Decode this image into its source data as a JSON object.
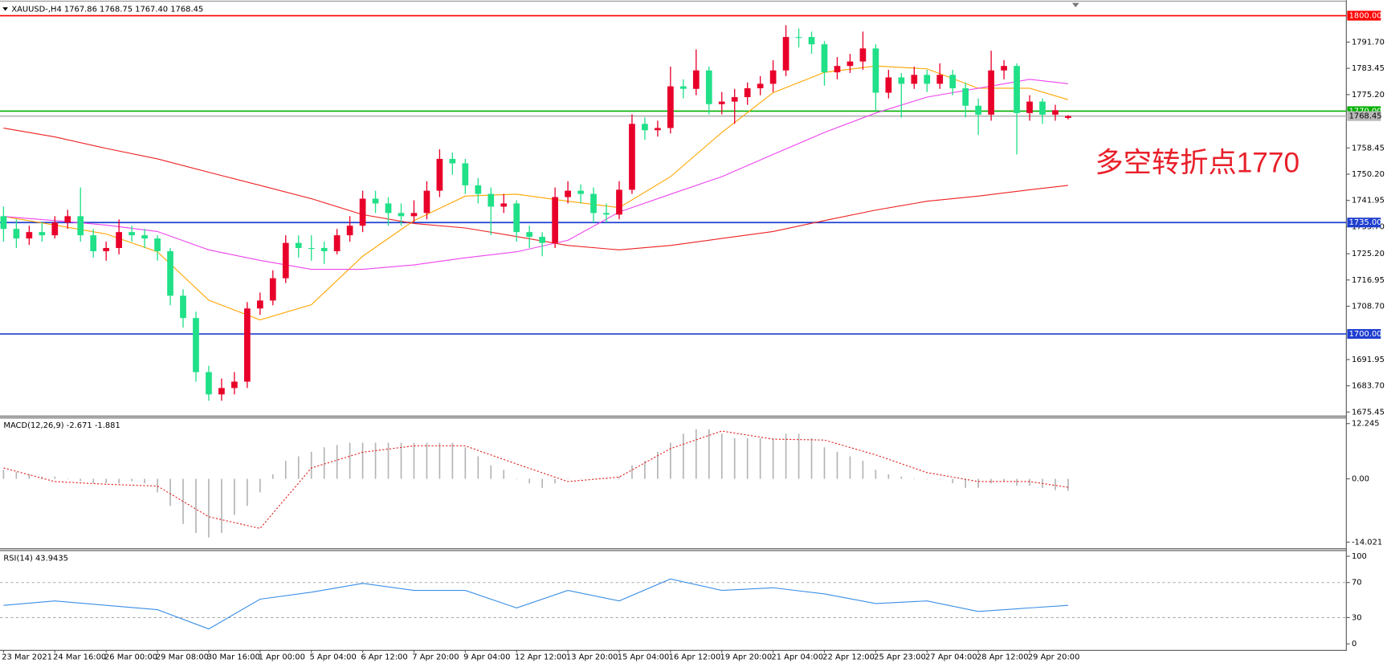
{
  "chart_data": [
    {
      "type": "candlestick",
      "title": "XAUUSD-,H4  1767.86 1768.75 1767.40 1768.45",
      "annotation": "多空转折点1770",
      "up_color": "#e8002a",
      "down_color": "#20e088",
      "ylim": [
        1674.3,
        1804.3
      ],
      "yticks": [
        {
          "value": 1791.7,
          "label": "1791.70"
        },
        1783.45,
        {
          "value": 1775.2,
          "label": "1775.20"
        },
        1758.45,
        {
          "value": 1750.2,
          "label": "1750.20"
        },
        1741.95,
        {
          "value": 1733.7,
          "label": "1733.70"
        },
        {
          "value": 1725.2,
          "label": "1725.20"
        },
        1716.95,
        {
          "value": 1708.7,
          "label": "1708.70"
        },
        1691.95,
        {
          "value": 1683.7,
          "label": "1683.70"
        },
        1675.45
      ],
      "categories": [
        "23 Mar 2021",
        null,
        null,
        null,
        "24 Mar 16:00",
        null,
        null,
        null,
        "26 Mar 00:00",
        null,
        null,
        null,
        "29 Mar 08:00",
        null,
        null,
        null,
        "30 Mar 16:00",
        null,
        null,
        null,
        "1 Apr 00:00",
        null,
        null,
        null,
        "5 Apr 04:00",
        null,
        null,
        null,
        "6 Apr 12:00",
        null,
        null,
        null,
        "7 Apr 20:00",
        null,
        null,
        null,
        "9 Apr 04:00",
        null,
        null,
        null,
        "12 Apr 12:00",
        null,
        null,
        null,
        "13 Apr 20:00",
        null,
        null,
        null,
        "15 Apr 04:00",
        null,
        null,
        null,
        "16 Apr 12:00",
        null,
        null,
        null,
        "19 Apr 20:00",
        null,
        null,
        null,
        "21 Apr 04:00",
        null,
        null,
        null,
        "22 Apr 12:00",
        null,
        null,
        null,
        "25 Apr 23:00",
        null,
        null,
        null,
        "27 Apr 04:00",
        null,
        null,
        null,
        "28 Apr 12:00",
        null,
        null,
        null,
        "29 Apr 20:00",
        null,
        null,
        null
      ],
      "candles": [
        [
          1737,
          1740,
          1729,
          1733
        ],
        [
          1733,
          1736,
          1727,
          1730
        ],
        [
          1730,
          1734,
          1728,
          1732
        ],
        [
          1732,
          1735,
          1729,
          1731
        ],
        [
          1731,
          1737,
          1730,
          1735
        ],
        [
          1735,
          1739,
          1733,
          1737
        ],
        [
          1737,
          1746,
          1729,
          1731
        ],
        [
          1731,
          1733,
          1724,
          1726
        ],
        [
          1726,
          1729,
          1723,
          1727
        ],
        [
          1727,
          1736,
          1725,
          1732
        ],
        [
          1732,
          1734,
          1729,
          1731
        ],
        [
          1731,
          1733,
          1727,
          1730
        ],
        [
          1730,
          1731,
          1723,
          1726
        ],
        [
          1726,
          1727,
          1709,
          1712
        ],
        [
          1712,
          1714,
          1702,
          1705
        ],
        [
          1705,
          1707,
          1685,
          1688
        ],
        [
          1688,
          1690,
          1679,
          1681
        ],
        [
          1681,
          1686,
          1679,
          1683
        ],
        [
          1683,
          1688,
          1681,
          1685
        ],
        [
          1685,
          1710,
          1683,
          1708
        ],
        [
          1708,
          1713,
          1706,
          1710.5
        ],
        [
          1710.5,
          1720,
          1709,
          1717.5
        ],
        [
          1717.5,
          1731,
          1716,
          1728.6
        ],
        [
          1728.6,
          1731,
          1724,
          1727
        ],
        [
          1727,
          1731,
          1723,
          1727
        ],
        [
          1727,
          1729,
          1722,
          1726
        ],
        [
          1726,
          1733,
          1725,
          1731
        ],
        [
          1731,
          1737,
          1729,
          1734
        ],
        [
          1734,
          1745,
          1732,
          1742.5
        ],
        [
          1742.5,
          1745,
          1738,
          1741
        ],
        [
          1741,
          1743,
          1734,
          1738
        ],
        [
          1738,
          1741,
          1734,
          1737
        ],
        [
          1737,
          1742,
          1735,
          1738
        ],
        [
          1738,
          1748,
          1736,
          1745
        ],
        [
          1745,
          1758,
          1743,
          1755
        ],
        [
          1755,
          1757,
          1750,
          1753.6
        ],
        [
          1753.6,
          1755,
          1744,
          1746.7
        ],
        [
          1746.7,
          1749,
          1741,
          1744
        ],
        [
          1744,
          1746,
          1731,
          1740
        ],
        [
          1740,
          1744,
          1738,
          1741
        ],
        [
          1741,
          1742,
          1729,
          1732
        ],
        [
          1732,
          1734,
          1727,
          1730.5
        ],
        [
          1730.5,
          1732,
          1724.4,
          1728.6
        ],
        [
          1728.6,
          1746,
          1727,
          1743
        ],
        [
          1743,
          1748,
          1741,
          1745
        ],
        [
          1745,
          1747,
          1741,
          1744
        ],
        [
          1744,
          1746,
          1735,
          1738
        ],
        [
          1738,
          1741,
          1735,
          1737.5
        ],
        [
          1737.5,
          1748,
          1736,
          1745.3
        ],
        [
          1745.3,
          1769,
          1744,
          1766
        ],
        [
          1766,
          1768,
          1761,
          1764
        ],
        [
          1764,
          1767,
          1762,
          1764.7
        ],
        [
          1764.7,
          1784,
          1763,
          1777.8
        ],
        [
          1777.8,
          1780,
          1774,
          1777
        ],
        [
          1777,
          1789.4,
          1775,
          1782.8
        ],
        [
          1782.8,
          1784,
          1769,
          1772.2
        ],
        [
          1772.2,
          1776,
          1769,
          1773
        ],
        [
          1773,
          1777,
          1766,
          1774.4
        ],
        [
          1774.4,
          1779,
          1772,
          1777.2
        ],
        [
          1777.2,
          1781,
          1775,
          1778.6
        ],
        [
          1778.6,
          1786,
          1776,
          1782.8
        ],
        [
          1782.8,
          1797,
          1781,
          1793.3
        ],
        [
          1793.3,
          1796,
          1790,
          1793.3
        ],
        [
          1793.3,
          1795,
          1788,
          1791
        ],
        [
          1791,
          1792,
          1778,
          1782.2
        ],
        [
          1782.2,
          1787,
          1780,
          1784.2
        ],
        [
          1784.2,
          1788,
          1782,
          1785.6
        ],
        [
          1785.6,
          1795,
          1783,
          1789.7
        ],
        [
          1789.7,
          1791,
          1770,
          1775.8
        ],
        [
          1775.8,
          1783,
          1774,
          1780.6
        ],
        [
          1780.6,
          1782,
          1768,
          1778.6
        ],
        [
          1778.6,
          1784,
          1777,
          1781.4
        ],
        [
          1781.4,
          1783,
          1776,
          1778.6
        ],
        [
          1778.6,
          1785,
          1777,
          1781.4
        ],
        [
          1781.4,
          1783,
          1775,
          1777.2
        ],
        [
          1777.2,
          1779,
          1768,
          1771.7
        ],
        [
          1771.7,
          1774,
          1762.5,
          1768.9
        ],
        [
          1768.9,
          1789,
          1767,
          1782.8
        ],
        [
          1782.8,
          1786,
          1780,
          1784.2
        ],
        [
          1784.2,
          1785,
          1756.4,
          1769.4
        ],
        [
          1769.4,
          1775,
          1767,
          1773
        ],
        [
          1773,
          1774,
          1766,
          1768.9
        ],
        [
          1768.9,
          1772,
          1767,
          1770.3
        ],
        [
          1767.86,
          1768.75,
          1767.4,
          1768.45
        ]
      ],
      "indicator_x": [
        0,
        4,
        8,
        12,
        16,
        20,
        24,
        28,
        32,
        36,
        40,
        44,
        48,
        52,
        56,
        60,
        64,
        68,
        72,
        76,
        80,
        83
      ],
      "lines": [
        {
          "color": "#ffa500",
          "values": [
            1736.9,
            1734.2,
            1731.4,
            1725.8,
            1710.6,
            1704.4,
            1709.2,
            1724.4,
            1735.6,
            1743.3,
            1743.9,
            1741.7,
            1739.7,
            1749.4,
            1763.3,
            1775.8,
            1782.2,
            1784.2,
            1783.3,
            1777.2,
            1777.2,
            1773.6
          ]
        },
        {
          "color": "#ee44ee",
          "values": [
            1736.9,
            1735.6,
            1734.2,
            1732.2,
            1726.4,
            1723.1,
            1720.3,
            1720.3,
            1721.7,
            1723.9,
            1725.8,
            1729.4,
            1738.3,
            1743.9,
            1749.4,
            1756.4,
            1763.3,
            1769.4,
            1774.4,
            1777.2,
            1780,
            1778.6
          ]
        },
        {
          "color": "#ee2020",
          "values": [
            1764.7,
            1761.9,
            1758.3,
            1755,
            1750.8,
            1746.7,
            1742.5,
            1737.5,
            1734.7,
            1733.3,
            1730.6,
            1727.8,
            1726.4,
            1727.8,
            1730,
            1732.2,
            1735.6,
            1738.9,
            1741.7,
            1743.3,
            1745.3,
            1746.7
          ]
        }
      ],
      "levels": [
        {
          "value": 1800,
          "label": "1800.00",
          "color": "#ff0000",
          "text_color": "#ffffff"
        },
        {
          "value": 1770,
          "label": "1770.00",
          "color": "#00b000",
          "text_color": "#ffffff"
        },
        {
          "value": 1768.45,
          "label": "1768.45",
          "color": "#b8b8b8",
          "text_color": "#000000"
        },
        {
          "value": 1735,
          "label": "1735.00",
          "color": "#1f3fd0",
          "text_color": "#ffffff"
        },
        {
          "value": 1700,
          "label": "1700.00",
          "color": "#1f3fd0",
          "text_color": "#ffffff"
        }
      ]
    },
    {
      "type": "macd",
      "title": "MACD(12,26,9) -2.671 -1.881",
      "color": "#b4b4b4",
      "ylim": [
        -15.4,
        13.4
      ],
      "yticks": [
        12.245,
        {
          "value": 0,
          "label": "0.00"
        },
        -14.021
      ],
      "values": [
        2,
        1.5,
        1,
        0.5,
        0.5,
        0,
        -0.5,
        -1,
        -1,
        -1,
        -0.5,
        -1,
        -3,
        -6,
        -10,
        -12,
        -13,
        -12,
        -8,
        -6,
        -3,
        1,
        4,
        5,
        6,
        7,
        7.5,
        8,
        8,
        8,
        8,
        8,
        8,
        8,
        8,
        8,
        7,
        5,
        3,
        2,
        0,
        -1,
        -2,
        -1,
        0,
        0,
        0,
        0,
        0.5,
        3,
        4,
        6,
        8,
        10,
        11,
        11,
        10,
        9,
        9,
        9,
        9,
        10,
        10,
        9,
        7,
        6,
        5,
        4,
        2,
        1,
        0.5,
        0,
        0,
        0,
        -1,
        -2,
        -2,
        -1,
        -0.5,
        -1.5,
        -1.5,
        -2,
        -2.5,
        -2.671
      ],
      "signal": {
        "color": "#e02020",
        "x": [
          0,
          4,
          8,
          12,
          16,
          20,
          24,
          28,
          32,
          36,
          40,
          44,
          48,
          52,
          56,
          60,
          64,
          68,
          72,
          76,
          80,
          83
        ],
        "values": [
          2.4,
          -0.6,
          -1.2,
          -1.6,
          -8.4,
          -11,
          2.4,
          5.9,
          7.3,
          7.3,
          3.3,
          -0.6,
          0.4,
          6.7,
          10.6,
          8.8,
          8.6,
          5.3,
          1.4,
          -0.6,
          -0.6,
          -1.881
        ]
      }
    },
    {
      "type": "line",
      "title": "RSI(14) 43.9435",
      "color": "#3a8ee6",
      "ylim": [
        -7,
        106
      ],
      "yticks": [
        100,
        70,
        30,
        0
      ],
      "levels": [
        70,
        30
      ],
      "x": [
        0,
        4,
        8,
        12,
        16,
        20,
        24,
        28,
        32,
        36,
        40,
        44,
        48,
        52,
        56,
        60,
        64,
        68,
        72,
        76,
        80,
        83
      ],
      "values": [
        44,
        49,
        44,
        39,
        17,
        51,
        59,
        69,
        61,
        61,
        41,
        61,
        49,
        74,
        61,
        64,
        57,
        46,
        49,
        37,
        41,
        43.9435
      ]
    }
  ]
}
